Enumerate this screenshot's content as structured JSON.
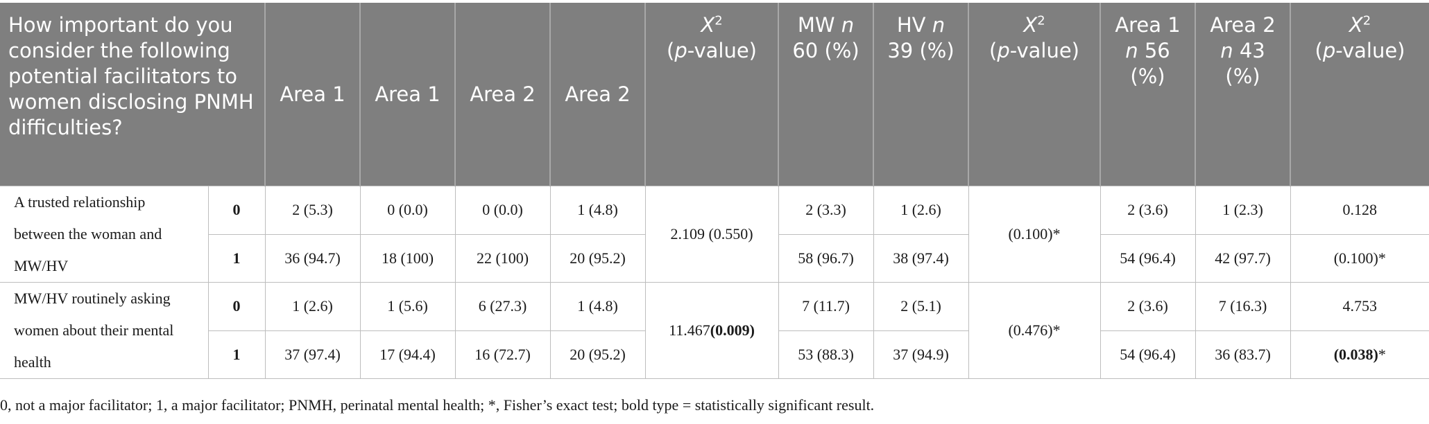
{
  "header": {
    "question": "How important do you consider the following potential facilitators to women disclosing PNMH difficulties?",
    "col_area1_a": "Area 1",
    "col_area1_b": "Area 1",
    "col_area2_a": "Area 2",
    "col_area2_b": "Area 2",
    "chi_symbol": "X",
    "chi_sup": "2",
    "chi_open": "(",
    "chi_p": "p",
    "chi_rest": "-value)",
    "mw_label": "MW",
    "mw_n": "n",
    "mw_rest": "60 (%)",
    "hv_label": "HV",
    "hv_n": "n",
    "hv_rest": "39 (%)",
    "area1_label": "Area 1",
    "area1_n": "n",
    "area1_rest": "56 (%)",
    "area2_label": "Area 2",
    "area2_n": "n",
    "area2_rest": "43 (%)"
  },
  "rows": [
    {
      "label": "A trusted relationship between the woman and MW/HV",
      "chi1": "2.109 (0.550)",
      "chi2": "(0.100)*",
      "levels": [
        {
          "code": "0",
          "a1": "2 (5.3)",
          "a1b": "0 (0.0)",
          "a2": "0 (0.0)",
          "a2b": "1 (4.8)",
          "mw": "2 (3.3)",
          "hv": "1 (2.6)",
          "ar1": "2 (3.6)",
          "ar2": "1 (2.3)",
          "chi3": "0.128",
          "chi3_bold": "",
          "chi3_suffix": ""
        },
        {
          "code": "1",
          "a1": "36 (94.7)",
          "a1b": "18 (100)",
          "a2": "22 (100)",
          "a2b": "20 (95.2)",
          "mw": "58 (96.7)",
          "hv": "38 (97.4)",
          "ar1": "54 (96.4)",
          "ar2": "42 (97.7)",
          "chi3": "(0.100)*",
          "chi3_bold": "",
          "chi3_suffix": ""
        }
      ]
    },
    {
      "label": "MW/HV routinely asking women about their mental health",
      "chi1_plain": "11.467",
      "chi1_bold": "(0.009)",
      "chi2": "(0.476)*",
      "levels": [
        {
          "code": "0",
          "a1": "1 (2.6)",
          "a1b": "1 (5.6)",
          "a2": "6 (27.3)",
          "a2b": "1 (4.8)",
          "mw": "7 (11.7)",
          "hv": "2 (5.1)",
          "ar1": "2 (3.6)",
          "ar2": "7 (16.3)",
          "chi3": "4.753",
          "chi3_bold": "",
          "chi3_suffix": ""
        },
        {
          "code": "1",
          "a1": "37 (97.4)",
          "a1b": "17 (94.4)",
          "a2": "16 (72.7)",
          "a2b": "20 (95.2)",
          "mw": "53 (88.3)",
          "hv": "37 (94.9)",
          "ar1": "54 (96.4)",
          "ar2": "36 (83.7)",
          "chi3": "",
          "chi3_bold": "(0.038)",
          "chi3_suffix": "*"
        }
      ]
    }
  ],
  "footnote": "0, not a major facilitator; 1, a major facilitator; PNMH, perinatal mental health; *, Fisher’s exact test; bold type = statistically significant result.",
  "colors": {
    "header_bg": "#7f7f7f",
    "header_text": "#ffffff",
    "grid": "#bdbdbd"
  }
}
